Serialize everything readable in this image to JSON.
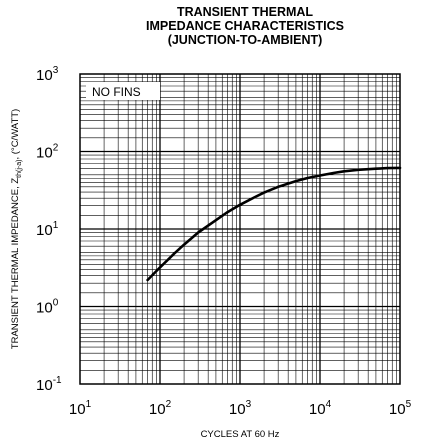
{
  "chart_data": {
    "type": "line",
    "title_lines": [
      "TRANSIENT THERMAL",
      "IMPEDANCE CHARACTERISTICS",
      "(JUNCTION-TO-AMBIENT)"
    ],
    "xlabel": "CYCLES AT 60 Hz",
    "ylabel": {
      "main": "TRANSIENT THERMAL IMPEDANCE, Z",
      "subscript": "th(j-a)",
      "unit": ", (°C/WATT)"
    },
    "xscale": "log",
    "yscale": "log",
    "xlim": [
      10,
      100000
    ],
    "ylim": [
      0.1,
      1000
    ],
    "grid": true,
    "x_ticks": [
      {
        "base": "10",
        "exp": "1"
      },
      {
        "base": "10",
        "exp": "2"
      },
      {
        "base": "10",
        "exp": "3"
      },
      {
        "base": "10",
        "exp": "4"
      },
      {
        "base": "10",
        "exp": "5"
      }
    ],
    "y_ticks": [
      {
        "base": "10",
        "exp": "-1"
      },
      {
        "base": "10",
        "exp": "0"
      },
      {
        "base": "10",
        "exp": "1"
      },
      {
        "base": "10",
        "exp": "2"
      },
      {
        "base": "10",
        "exp": "3"
      }
    ],
    "annotation": "NO FINS",
    "series": [
      {
        "x": [
          70,
          100,
          150,
          200,
          300,
          500,
          700,
          1000,
          1500,
          2000,
          3000,
          5000,
          7000,
          10000,
          15000,
          20000,
          30000,
          50000,
          70000,
          100000
        ],
        "y": [
          2.2,
          3.2,
          4.8,
          6.3,
          9.0,
          13.0,
          16.5,
          20.5,
          25.5,
          29.5,
          35.0,
          41.5,
          45.5,
          49.0,
          53.0,
          55.5,
          58.0,
          60.0,
          61.0,
          61.5
        ]
      }
    ]
  }
}
